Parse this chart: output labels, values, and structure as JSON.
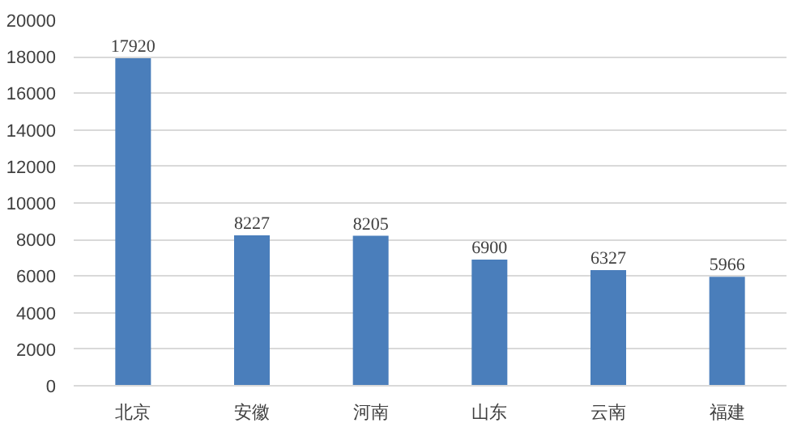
{
  "chart_data": {
    "type": "bar",
    "categories": [
      "北京",
      "安徽",
      "河南",
      "山东",
      "云南",
      "福建"
    ],
    "values": [
      17920,
      8227,
      8205,
      6900,
      6327,
      5966
    ],
    "color": "#4a7ebb",
    "ylim": [
      0,
      20000
    ],
    "yticks": [
      0,
      2000,
      4000,
      6000,
      8000,
      10000,
      12000,
      14000,
      16000,
      18000,
      20000
    ],
    "grid": "y",
    "data_labels": true
  }
}
